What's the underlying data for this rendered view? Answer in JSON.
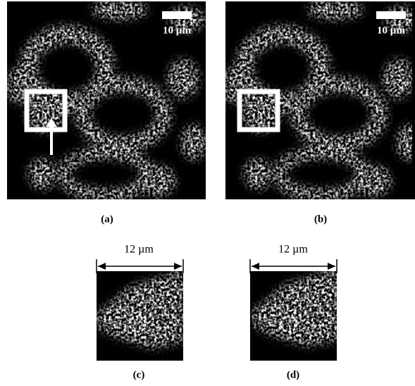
{
  "panels": [
    {
      "label": "(a)",
      "scale_label": "10 µm"
    },
    {
      "label": "(b)",
      "scale_label": "10 µm"
    },
    {
      "label": "(c)",
      "scale_label": "12 µm"
    },
    {
      "label": "(d)",
      "scale_label": "12 µm"
    }
  ]
}
